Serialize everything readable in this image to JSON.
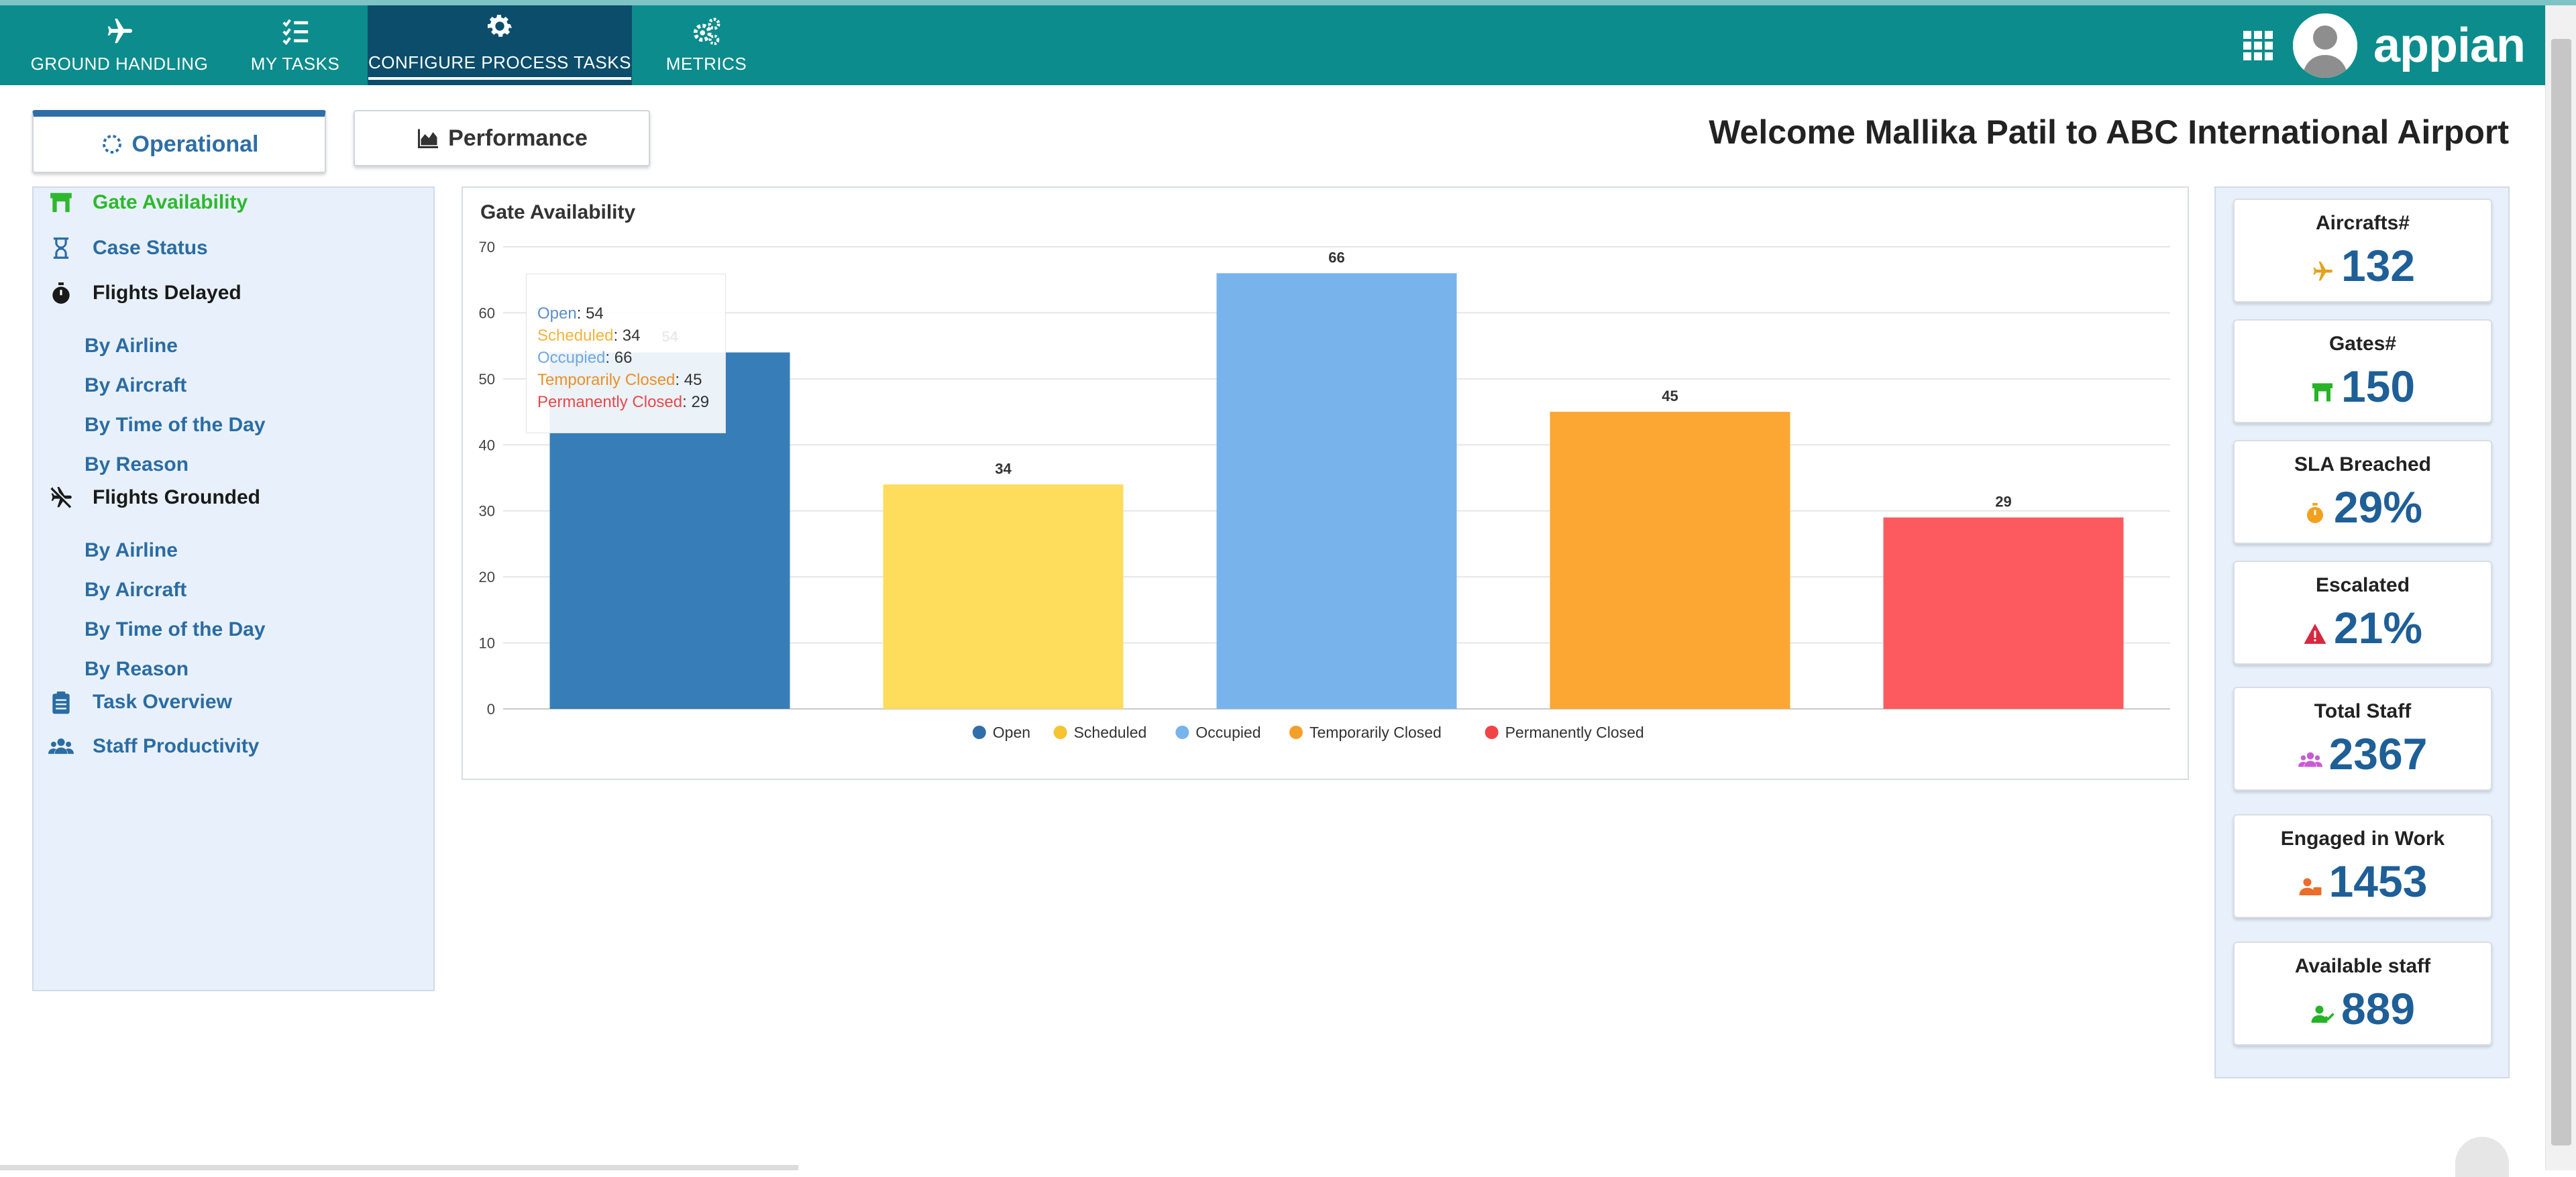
{
  "nav": {
    "tabs": [
      {
        "label": "GROUND HANDLING",
        "icon": "plane-icon"
      },
      {
        "label": "MY TASKS",
        "icon": "checklist-icon"
      },
      {
        "label": "CONFIGURE PROCESS TASKS",
        "icon": "gear-icon",
        "active": true
      },
      {
        "label": "METRICS",
        "icon": "gears-icon"
      }
    ],
    "logo": "appian"
  },
  "page_tabs": {
    "operational": "Operational",
    "performance": "Performance"
  },
  "welcome": "Welcome Mallika Patil to ABC International Airport",
  "sidebar": {
    "gate_availability": "Gate Availability",
    "case_status": "Case Status",
    "flights_delayed": "Flights Delayed",
    "delayed_items": [
      "By Airline",
      "By Aircraft",
      "By Time of the Day",
      "By Reason"
    ],
    "flights_grounded": "Flights Grounded",
    "grounded_items": [
      "By Airline",
      "By Aircraft",
      "By Time of the Day",
      "By Reason"
    ],
    "task_overview": "Task Overview",
    "staff_productivity": "Staff Productivity"
  },
  "chart_data": {
    "type": "bar",
    "title": "Gate Availability",
    "categories": [
      "Open",
      "Scheduled",
      "Occupied",
      "Temporarily Closed",
      "Permanently Closed"
    ],
    "values": [
      54,
      34,
      66,
      45,
      29
    ],
    "colors": [
      "#377eb8",
      "#fedc5c",
      "#78b4eb",
      "#fca634",
      "#fd5a5f"
    ],
    "ylim": [
      0,
      70
    ],
    "yticks": [
      0,
      10,
      20,
      30,
      40,
      50,
      60,
      70
    ],
    "legend": [
      "Open",
      "Scheduled",
      "Occupied",
      "Temporarily Closed",
      "Permanently Closed"
    ],
    "legend_colors": [
      "#2f6eaa",
      "#f6c332",
      "#78b4eb",
      "#f59f2b",
      "#f04449"
    ],
    "legend_position": "bottom",
    "grid": true
  },
  "tooltip": {
    "rows": [
      {
        "label": "Open",
        "value": "54",
        "color": "#5b8fc9"
      },
      {
        "label": "Scheduled",
        "value": "34",
        "color": "#f2b33a"
      },
      {
        "label": "Occupied",
        "value": "66",
        "color": "#6fa7df"
      },
      {
        "label": "Temporarily Closed",
        "value": "45",
        "color": "#e9902a"
      },
      {
        "label": "Permanently Closed",
        "value": "29",
        "color": "#e8484c"
      }
    ]
  },
  "kpis": [
    {
      "label": "Aircrafts#",
      "value": "132",
      "icon": "plane-icon",
      "icon_color": "#e4a11b"
    },
    {
      "label": "Gates#",
      "value": "150",
      "icon": "gate-icon",
      "icon_color": "#26b326"
    },
    {
      "label": "SLA Breached",
      "value": "29%",
      "icon": "stopwatch-icon",
      "icon_color": "#f2a11c"
    },
    {
      "label": "Escalated",
      "value": "21%",
      "icon": "warning-icon",
      "icon_color": "#d8273f"
    },
    {
      "label": "Total Staff",
      "value": "2367",
      "icon": "users-icon",
      "icon_color": "#c85bd6"
    },
    {
      "label": "Engaged in Work",
      "value": "1453",
      "icon": "user-tie-icon",
      "icon_color": "#ec6c2a"
    },
    {
      "label": "Available staff",
      "value": "889",
      "icon": "user-check-icon",
      "icon_color": "#26b326"
    }
  ]
}
